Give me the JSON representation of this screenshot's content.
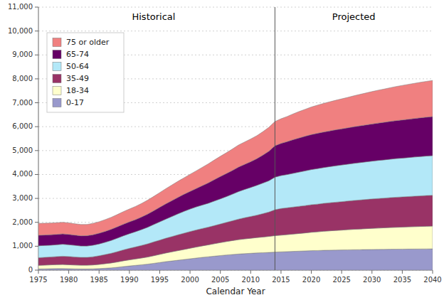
{
  "chart_data": {
    "type": "area",
    "stacked": true,
    "x_label": "Calendar Year",
    "annotations": [
      {
        "text": "Historical",
        "x": 1994,
        "y": 10750
      },
      {
        "text": "Projected",
        "x": 2027,
        "y": 10750
      }
    ],
    "vertical_lines": [
      {
        "x": 2014
      }
    ],
    "x": [
      1975,
      1976,
      1977,
      1978,
      1979,
      1980,
      1981,
      1982,
      1983,
      1984,
      1985,
      1986,
      1987,
      1988,
      1989,
      1990,
      1991,
      1992,
      1993,
      1994,
      1995,
      1996,
      1997,
      1998,
      1999,
      2000,
      2001,
      2002,
      2003,
      2004,
      2005,
      2006,
      2007,
      2008,
      2009,
      2010,
      2011,
      2012,
      2013,
      2014,
      2015,
      2016,
      2017,
      2018,
      2019,
      2020,
      2021,
      2022,
      2023,
      2024,
      2025,
      2026,
      2027,
      2028,
      2029,
      2030,
      2031,
      2032,
      2033,
      2034,
      2035,
      2036,
      2037,
      2038,
      2039,
      2040
    ],
    "series": [
      {
        "name": "0-17",
        "color": "#9999cc",
        "values": [
          50,
          55,
          60,
          65,
          65,
          60,
          55,
          50,
          50,
          55,
          65,
          80,
          95,
          120,
          150,
          175,
          200,
          225,
          250,
          285,
          320,
          355,
          385,
          415,
          445,
          475,
          505,
          535,
          560,
          585,
          610,
          635,
          655,
          675,
          690,
          705,
          720,
          730,
          740,
          755,
          765,
          775,
          785,
          795,
          805,
          815,
          820,
          830,
          835,
          840,
          845,
          850,
          855,
          858,
          862,
          865,
          868,
          871,
          874,
          877,
          880,
          882,
          884,
          886,
          888,
          890
        ]
      },
      {
        "name": "18-34",
        "color": "#ffffcc",
        "values": [
          150,
          155,
          160,
          165,
          170,
          165,
          160,
          155,
          155,
          162,
          175,
          190,
          205,
          222,
          240,
          255,
          268,
          282,
          298,
          318,
          338,
          362,
          382,
          400,
          420,
          440,
          460,
          478,
          498,
          520,
          542,
          562,
          582,
          600,
          615,
          628,
          642,
          656,
          670,
          688,
          698,
          710,
          724,
          738,
          752,
          770,
          782,
          795,
          808,
          820,
          830,
          842,
          852,
          862,
          872,
          882,
          890,
          900,
          908,
          915,
          922,
          928,
          935,
          940,
          946,
          952
        ]
      },
      {
        "name": "35-49",
        "color": "#993366",
        "values": [
          320,
          326,
          332,
          338,
          348,
          344,
          338,
          330,
          330,
          344,
          362,
          382,
          406,
          432,
          458,
          482,
          502,
          528,
          552,
          578,
          598,
          618,
          638,
          662,
          680,
          700,
          714,
          728,
          740,
          758,
          778,
          802,
          828,
          860,
          888,
          912,
          938,
          976,
          1020,
          1082,
          1115,
          1122,
          1130,
          1138,
          1144,
          1152,
          1158,
          1166,
          1175,
          1182,
          1190,
          1198,
          1206,
          1214,
          1222,
          1230,
          1238,
          1242,
          1250,
          1258,
          1262,
          1268,
          1274,
          1280,
          1286,
          1290
        ]
      },
      {
        "name": "50-64",
        "color": "#b3e8f8",
        "values": [
          500,
          495,
          492,
          494,
          500,
          495,
          485,
          475,
          473,
          482,
          494,
          512,
          538,
          562,
          588,
          612,
          638,
          662,
          694,
          726,
          764,
          800,
          838,
          876,
          914,
          940,
          964,
          982,
          1000,
          1026,
          1052,
          1078,
          1114,
          1152,
          1182,
          1214,
          1246,
          1278,
          1308,
          1364,
          1378,
          1390,
          1410,
          1430,
          1452,
          1468,
          1486,
          1498,
          1510,
          1522,
          1532,
          1542,
          1552,
          1562,
          1572,
          1582,
          1592,
          1598,
          1608,
          1616,
          1622,
          1630,
          1638,
          1646,
          1652,
          1658
        ]
      },
      {
        "name": "65-74",
        "color": "#660066",
        "values": [
          438,
          438,
          438,
          435,
          434,
          432,
          428,
          428,
          432,
          438,
          447,
          456,
          466,
          475,
          485,
          494,
          506,
          525,
          550,
          576,
          608,
          638,
          664,
          690,
          714,
          738,
          770,
          808,
          850,
          896,
          934,
          964,
          994,
          1026,
          1050,
          1078,
          1114,
          1170,
          1238,
          1314,
          1346,
          1378,
          1408,
          1428,
          1448,
          1464,
          1478,
          1486,
          1494,
          1504,
          1512,
          1520,
          1530,
          1538,
          1546,
          1554,
          1562,
          1572,
          1580,
          1588,
          1596,
          1604,
          1612,
          1620,
          1626,
          1632
        ]
      },
      {
        "name": "75 or older",
        "color": "#f08080",
        "values": [
          500,
          494,
          488,
          485,
          485,
          482,
          476,
          472,
          472,
          476,
          482,
          492,
          500,
          513,
          525,
          538,
          550,
          566,
          582,
          598,
          614,
          632,
          652,
          670,
          688,
          714,
          738,
          766,
          796,
          820,
          845,
          870,
          896,
          920,
          934,
          948,
          962,
          978,
          996,
          1014,
          1028,
          1050,
          1078,
          1106,
          1128,
          1154,
          1176,
          1196,
          1216,
          1234,
          1254,
          1272,
          1296,
          1316,
          1334,
          1354,
          1374,
          1390,
          1408,
          1426,
          1444,
          1458,
          1470,
          1484,
          1498,
          1512
        ]
      }
    ],
    "xlim": [
      1975,
      2040
    ],
    "xticks": [
      1975,
      1980,
      1985,
      1990,
      1995,
      2000,
      2005,
      2010,
      2015,
      2020,
      2025,
      2030,
      2035,
      2040
    ],
    "ylim": [
      0,
      11000
    ],
    "yticks": [
      0,
      {
        "value": 1000,
        "label": "1,000"
      },
      {
        "value": 2000,
        "label": "2,000"
      },
      {
        "value": 3000,
        "label": "3,000"
      },
      {
        "value": 4000,
        "label": "4,000"
      },
      {
        "value": 5000,
        "label": "5,000"
      },
      {
        "value": 6000,
        "label": "6,000"
      },
      {
        "value": 7000,
        "label": "7,000"
      },
      {
        "value": 8000,
        "label": "8,000"
      },
      {
        "value": 9000,
        "label": "9,000"
      },
      {
        "value": 10000,
        "label": "10,000"
      },
      {
        "value": 11000,
        "label": "11,000"
      }
    ],
    "grid": true,
    "legend": "upper left"
  }
}
